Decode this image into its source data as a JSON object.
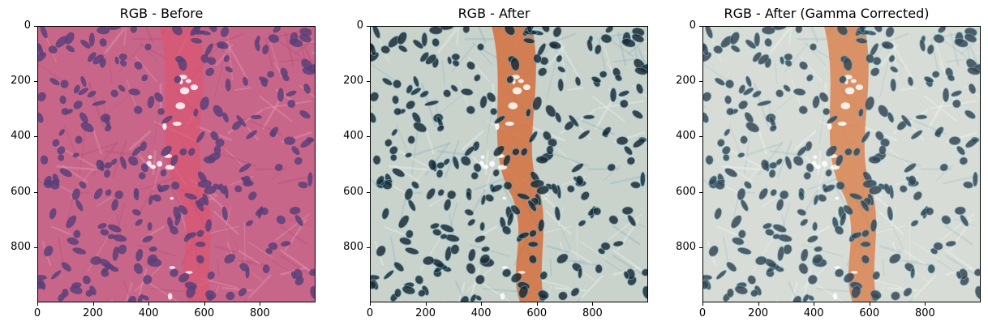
{
  "panels": [
    {
      "title": "RGB - Before",
      "style": "he"
    },
    {
      "title": "RGB - After",
      "style": "after"
    },
    {
      "title": "RGB - After (Gamma Corrected)",
      "style": "gamma"
    }
  ],
  "axes": {
    "x_ticks": [
      "0",
      "200",
      "400",
      "600",
      "800"
    ],
    "y_ticks": [
      "0",
      "200",
      "400",
      "600",
      "800"
    ],
    "x_range": [
      0,
      1000
    ],
    "y_range": [
      0,
      1000
    ]
  },
  "colors": {
    "he_background": "#c8668a",
    "he_nucleus": "#5a3f78",
    "he_stroma": "#e0506a",
    "after_background": "#c9d3cc",
    "after_nucleus": "#1f2a35",
    "after_stroma": "#d4622a",
    "gamma_background": "#d7ddd6",
    "gamma_nucleus": "#3a4654",
    "gamma_stroma": "#d9773f"
  }
}
